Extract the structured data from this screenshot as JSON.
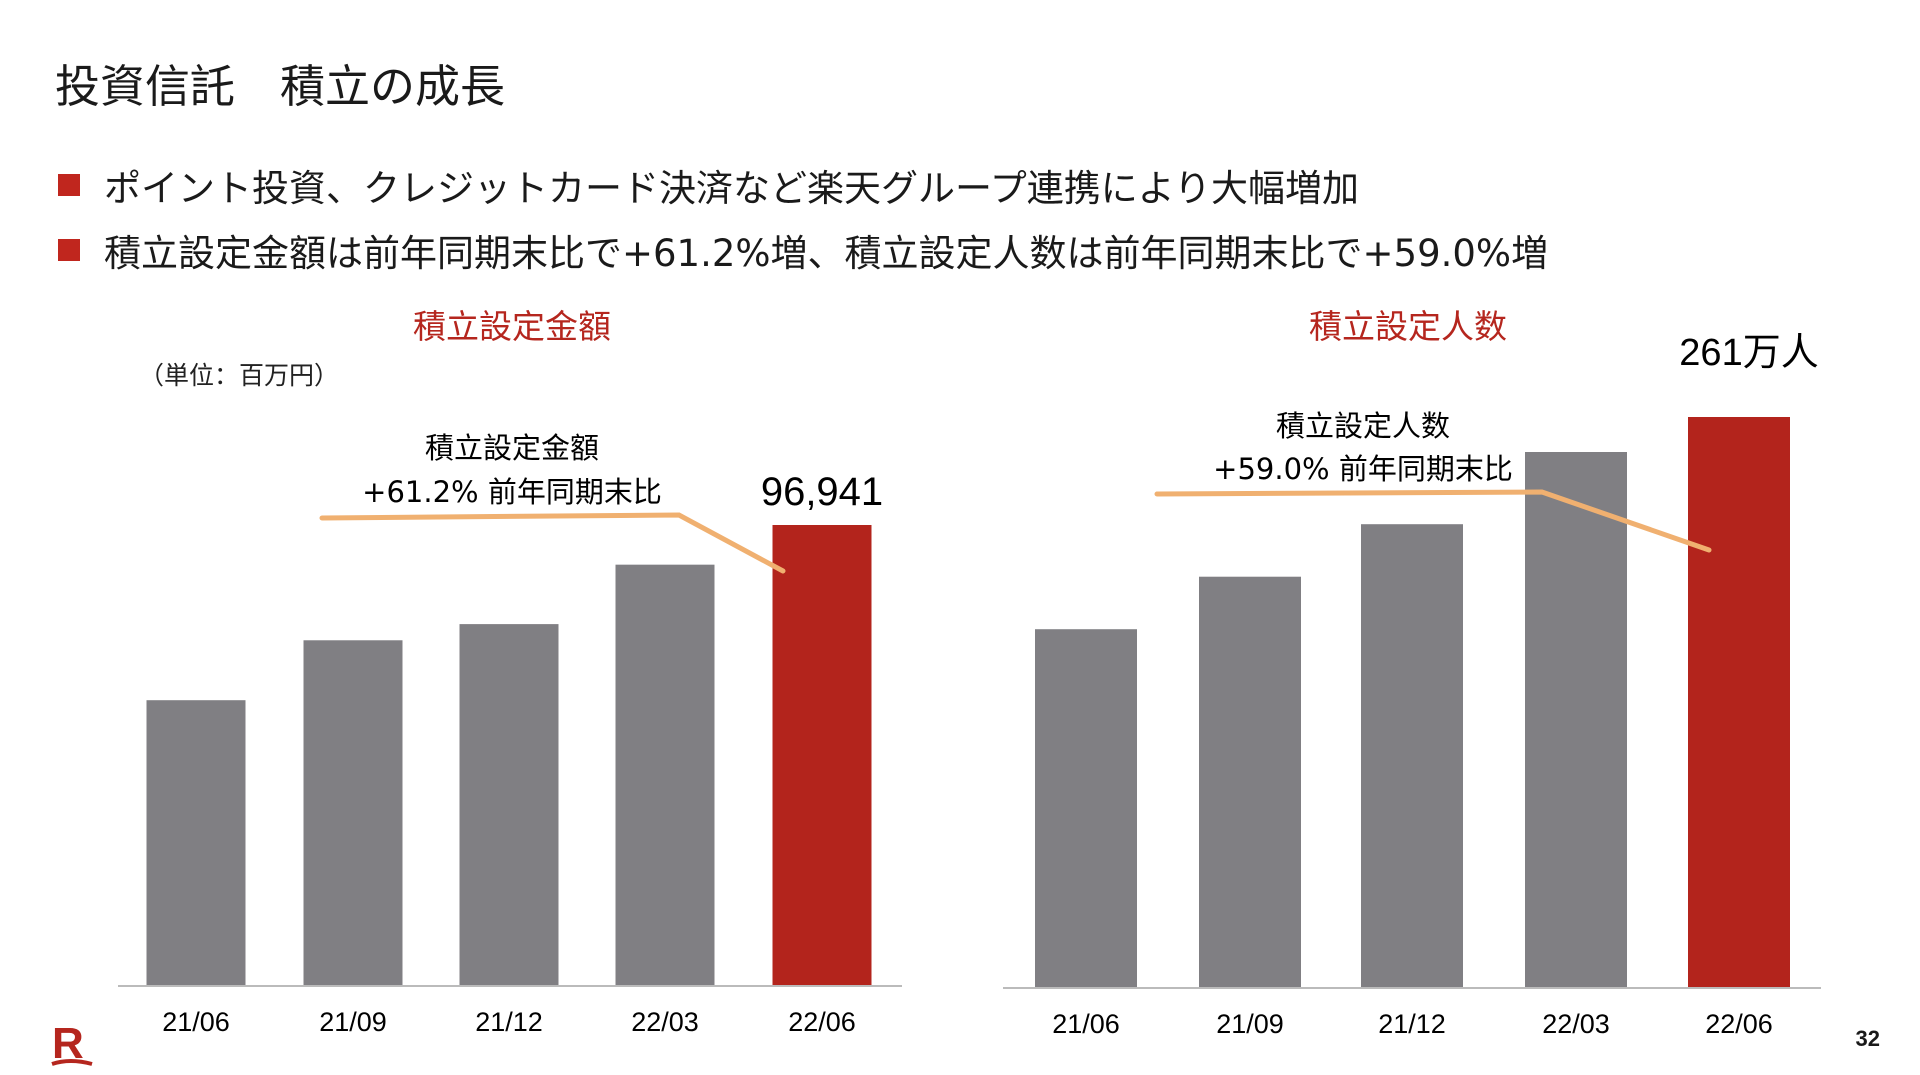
{
  "title": "投資信託　積立の成長",
  "bullets": [
    "ポイント投資、クレジットカード決済など楽天グループ連携により大幅増加",
    "積立設定金額は前年同期末比で+61.2%増、積立設定人数は前年同期末比で+59.0%増"
  ],
  "page_number": "32",
  "logo": "R",
  "colors": {
    "bar": "#807f83",
    "highlight": "#b3241c",
    "title_red": "#b5261e",
    "annotation_line": "#f0b070"
  },
  "chart_data": [
    {
      "type": "bar",
      "title": "積立設定金額",
      "unit_label": "（単位：百万円）",
      "categories": [
        "21/06",
        "21/09",
        "21/12",
        "22/03",
        "22/06"
      ],
      "values": [
        60100,
        72700,
        76100,
        88600,
        96941
      ],
      "highlight_index": 4,
      "value_label": "96,941",
      "annotation": {
        "line1": "積立設定金額",
        "line2": "+61.2% 前年同期末比"
      },
      "ylim": [
        0,
        96941
      ],
      "grid": false
    },
    {
      "type": "bar",
      "title": "積立設定人数",
      "unit": "万人",
      "categories": [
        "21/06",
        "21/09",
        "21/12",
        "22/03",
        "22/06"
      ],
      "values": [
        164,
        188,
        212,
        245,
        261
      ],
      "highlight_index": 4,
      "value_label": "261万人",
      "annotation": {
        "line1": "積立設定人数",
        "line2": "+59.0% 前年同期末比"
      },
      "ylim": [
        0,
        261
      ],
      "grid": false
    }
  ]
}
